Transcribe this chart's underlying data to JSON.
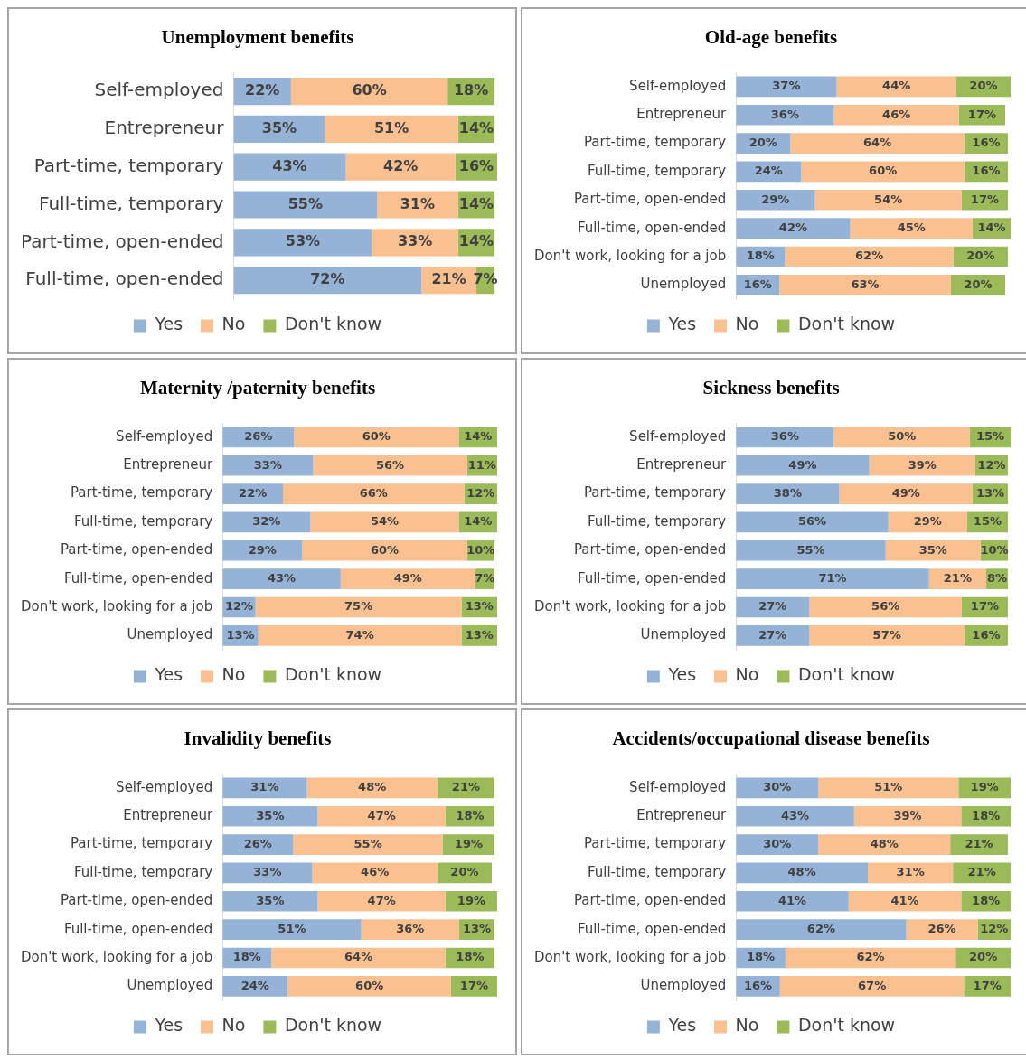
{
  "chart_data": [
    {
      "type": "bar",
      "title": "Unemployment benefits",
      "orientation": "horizontal",
      "stacked": true,
      "legend": "bottom",
      "tick_labels": "y",
      "categories": [
        "Self-employed",
        "Entrepreneur",
        "Part-time, temporary",
        "Full-time, temporary",
        "Part-time, open-ended",
        "Full-time, open-ended"
      ],
      "series": [
        {
          "name": "Yes",
          "color": "#95b3d7",
          "values": [
            22,
            35,
            43,
            55,
            53,
            72
          ],
          "value_labels": [
            "22%",
            "35%",
            "43%",
            "55%",
            "53%",
            "72%"
          ]
        },
        {
          "name": "No",
          "color": "#fac090",
          "values": [
            60,
            51,
            42,
            31,
            33,
            21
          ],
          "value_labels": [
            "60%",
            "51%",
            "42%",
            "31%",
            "33%",
            "21%"
          ]
        },
        {
          "name": "Don't know",
          "color": "#9bbb59",
          "values": [
            18,
            14,
            16,
            14,
            14,
            7
          ],
          "value_labels": [
            "18%",
            "14%",
            "16%",
            "14%",
            "14%",
            "7%"
          ]
        }
      ]
    },
    {
      "type": "bar",
      "title": "Old-age benefits",
      "orientation": "horizontal",
      "stacked": true,
      "legend": "bottom",
      "tick_labels": "y",
      "categories": [
        "Self-employed",
        "Entrepreneur",
        "Part-time, temporary",
        "Full-time, temporary",
        "Part-time, open-ended",
        "Full-time, open-ended",
        "Don't work, looking for a job",
        "Unemployed"
      ],
      "series": [
        {
          "name": "Yes",
          "color": "#95b3d7",
          "values": [
            37,
            36,
            20,
            24,
            29,
            42,
            18,
            16
          ],
          "value_labels": [
            "37%",
            "36%",
            "20%",
            "24%",
            "29%",
            "42%",
            "18%",
            "16%"
          ]
        },
        {
          "name": "No",
          "color": "#fac090",
          "values": [
            44,
            46,
            64,
            60,
            54,
            45,
            62,
            63
          ],
          "value_labels": [
            "44%",
            "46%",
            "64%",
            "60%",
            "54%",
            "45%",
            "62%",
            "63%"
          ]
        },
        {
          "name": "Don't know",
          "color": "#9bbb59",
          "values": [
            20,
            17,
            16,
            16,
            17,
            14,
            20,
            20
          ],
          "value_labels": [
            "20%",
            "17%",
            "16%",
            "16%",
            "17%",
            "14%",
            "20%",
            "20%"
          ]
        }
      ]
    },
    {
      "type": "bar",
      "title": "Maternity /paternity benefits",
      "orientation": "horizontal",
      "stacked": true,
      "legend": "bottom",
      "tick_labels": "y",
      "categories": [
        "Self-employed",
        "Entrepreneur",
        "Part-time, temporary",
        "Full-time, temporary",
        "Part-time, open-ended",
        "Full-time, open-ended",
        "Don't work, looking for a job",
        "Unemployed"
      ],
      "series": [
        {
          "name": "Yes",
          "color": "#95b3d7",
          "values": [
            26,
            33,
            22,
            32,
            29,
            43,
            12,
            13
          ],
          "value_labels": [
            "26%",
            "33%",
            "22%",
            "32%",
            "29%",
            "43%",
            "12%",
            "13%"
          ]
        },
        {
          "name": "No",
          "color": "#fac090",
          "values": [
            60,
            56,
            66,
            54,
            60,
            49,
            75,
            74
          ],
          "value_labels": [
            "60%",
            "56%",
            "66%",
            "54%",
            "60%",
            "49%",
            "75%",
            "74%"
          ]
        },
        {
          "name": "Don't know",
          "color": "#9bbb59",
          "values": [
            14,
            11,
            12,
            14,
            10,
            7,
            13,
            13
          ],
          "value_labels": [
            "14%",
            "11%",
            "12%",
            "14%",
            "10%",
            "7%",
            "13%",
            "13%"
          ]
        }
      ]
    },
    {
      "type": "bar",
      "title": "Sickness benefits",
      "orientation": "horizontal",
      "stacked": true,
      "legend": "bottom",
      "tick_labels": "y",
      "categories": [
        "Self-employed",
        "Entrepreneur",
        "Part-time, temporary",
        "Full-time, temporary",
        "Part-time, open-ended",
        "Full-time, open-ended",
        "Don't work, looking for a job",
        "Unemployed"
      ],
      "series": [
        {
          "name": "Yes",
          "color": "#95b3d7",
          "values": [
            36,
            49,
            38,
            56,
            55,
            71,
            27,
            27
          ],
          "value_labels": [
            "36%",
            "49%",
            "38%",
            "56%",
            "55%",
            "71%",
            "27%",
            "27%"
          ]
        },
        {
          "name": "No",
          "color": "#fac090",
          "values": [
            50,
            39,
            49,
            29,
            35,
            21,
            56,
            57
          ],
          "value_labels": [
            "50%",
            "39%",
            "49%",
            "29%",
            "35%",
            "21%",
            "56%",
            "57%"
          ]
        },
        {
          "name": "Don't know",
          "color": "#9bbb59",
          "values": [
            15,
            12,
            13,
            15,
            10,
            8,
            17,
            16
          ],
          "value_labels": [
            "15%",
            "12%",
            "13%",
            "15%",
            "10%",
            "8%",
            "17%",
            "16%"
          ]
        }
      ]
    },
    {
      "type": "bar",
      "title": "Invalidity benefits",
      "orientation": "horizontal",
      "stacked": true,
      "legend": "bottom",
      "tick_labels": "y",
      "categories": [
        "Self-employed",
        "Entrepreneur",
        "Part-time, temporary",
        "Full-time, temporary",
        "Part-time, open-ended",
        "Full-time, open-ended",
        "Don't work, looking for a job",
        "Unemployed"
      ],
      "series": [
        {
          "name": "Yes",
          "color": "#95b3d7",
          "values": [
            31,
            35,
            26,
            33,
            35,
            51,
            18,
            24
          ],
          "value_labels": [
            "31%",
            "35%",
            "26%",
            "33%",
            "35%",
            "51%",
            "18%",
            "24%"
          ]
        },
        {
          "name": "No",
          "color": "#fac090",
          "values": [
            48,
            47,
            55,
            46,
            47,
            36,
            64,
            60
          ],
          "value_labels": [
            "48%",
            "47%",
            "55%",
            "46%",
            "47%",
            "36%",
            "64%",
            "60%"
          ]
        },
        {
          "name": "Don't know",
          "color": "#9bbb59",
          "values": [
            21,
            18,
            19,
            20,
            19,
            13,
            18,
            17
          ],
          "value_labels": [
            "21%",
            "18%",
            "19%",
            "20%",
            "19%",
            "13%",
            "18%",
            "17%"
          ]
        }
      ]
    },
    {
      "type": "bar",
      "title": "Accidents/occupational disease benefits",
      "orientation": "horizontal",
      "stacked": true,
      "legend": "bottom",
      "tick_labels": "y",
      "categories": [
        "Self-employed",
        "Entrepreneur",
        "Part-time, temporary",
        "Full-time, temporary",
        "Part-time, open-ended",
        "Full-time, open-ended",
        "Don't work, looking for a job",
        "Unemployed"
      ],
      "series": [
        {
          "name": "Yes",
          "color": "#95b3d7",
          "values": [
            30,
            43,
            30,
            48,
            41,
            62,
            18,
            16
          ],
          "value_labels": [
            "30%",
            "43%",
            "30%",
            "48%",
            "41%",
            "62%",
            "18%",
            "16%"
          ]
        },
        {
          "name": "No",
          "color": "#fac090",
          "values": [
            51,
            39,
            48,
            31,
            41,
            26,
            62,
            67
          ],
          "value_labels": [
            "51%",
            "39%",
            "48%",
            "31%",
            "41%",
            "26%",
            "62%",
            "67%"
          ]
        },
        {
          "name": "Don't know",
          "color": "#9bbb59",
          "values": [
            19,
            18,
            21,
            21,
            18,
            12,
            20,
            17
          ],
          "value_labels": [
            "19%",
            "18%",
            "21%",
            "21%",
            "18%",
            "12%",
            "20%",
            "17%"
          ]
        }
      ]
    }
  ]
}
